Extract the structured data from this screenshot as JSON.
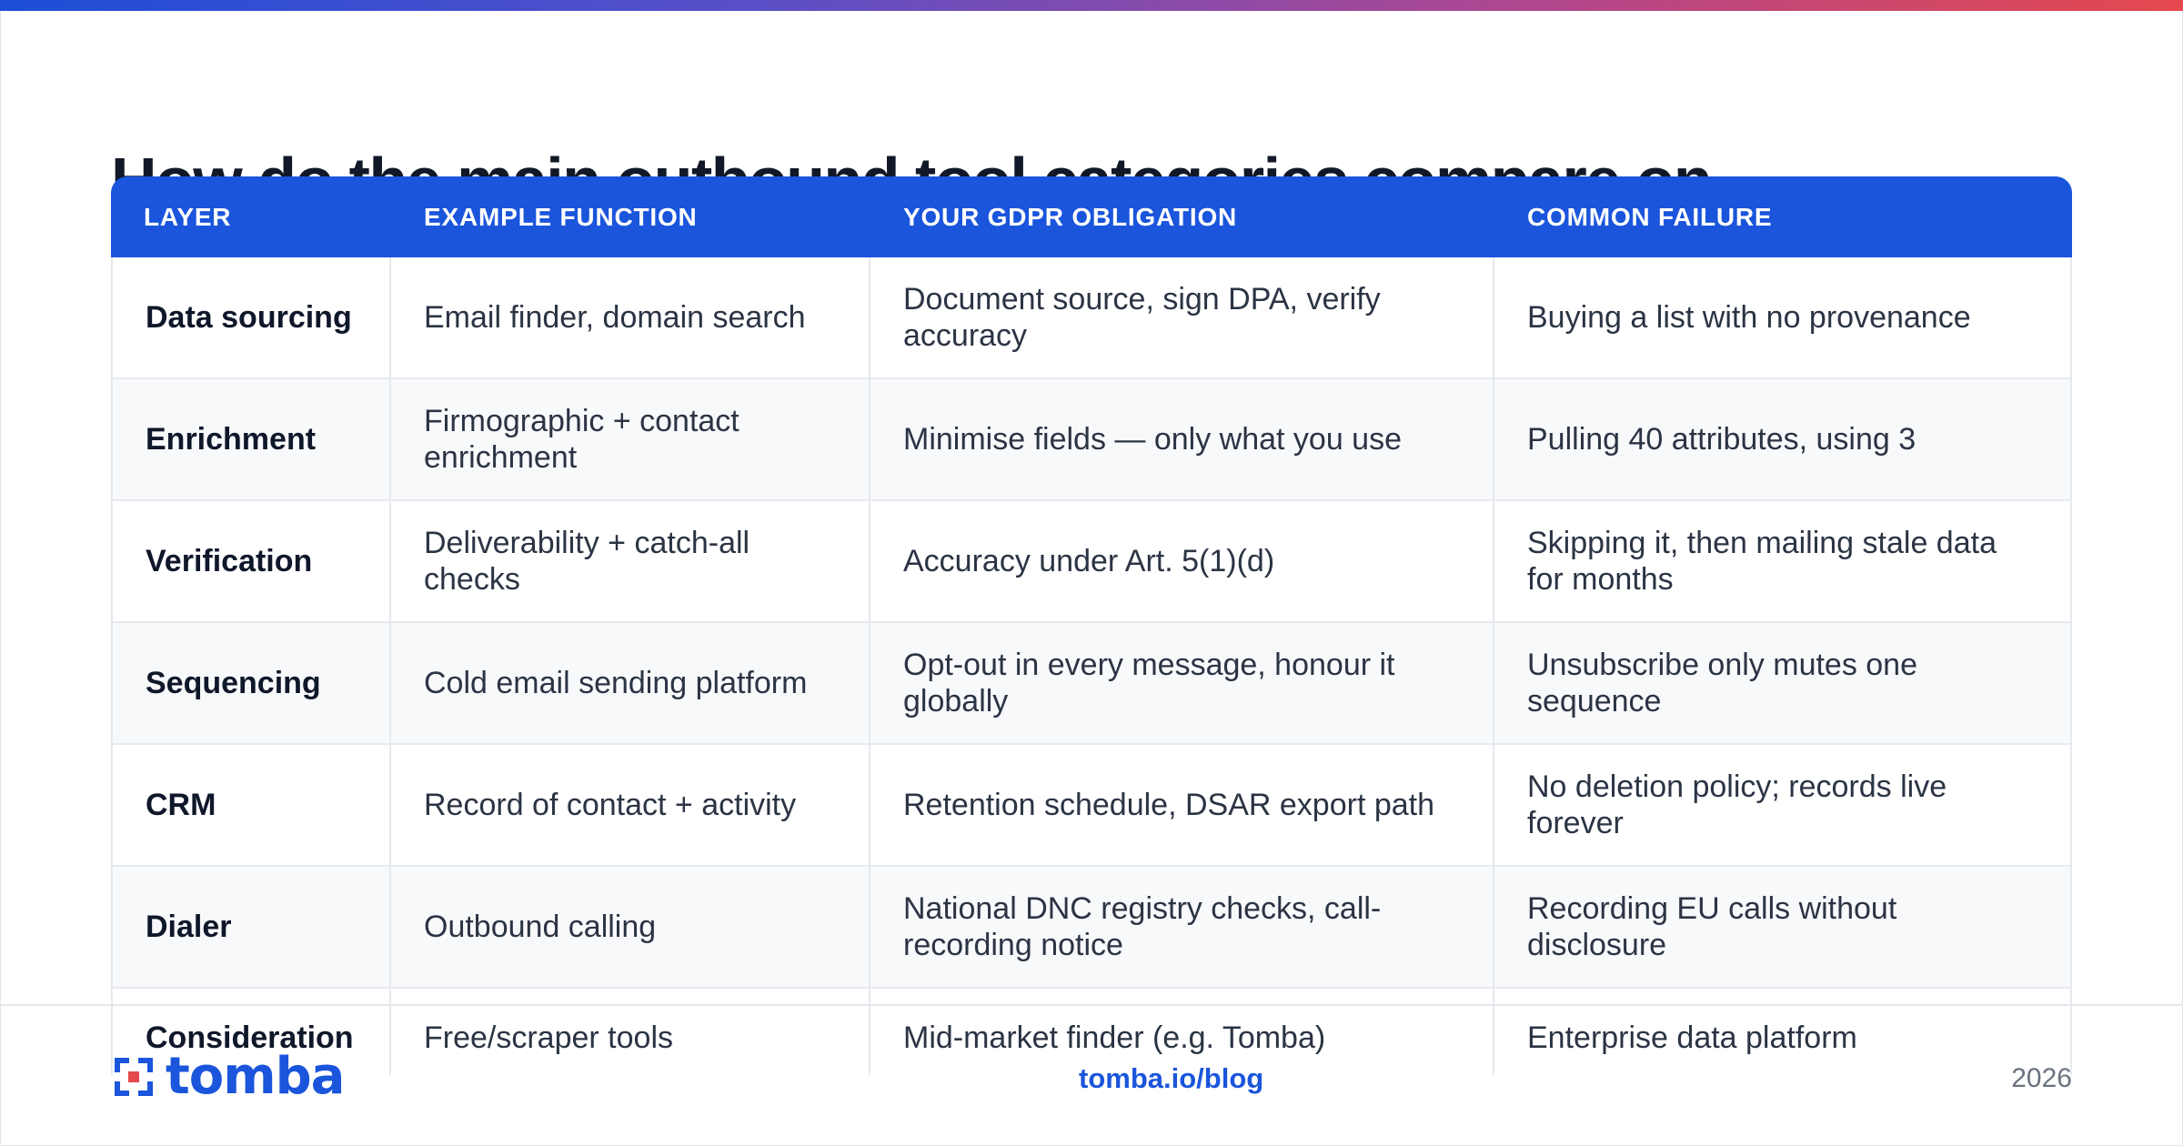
{
  "title": "How do the main outbound tool categories compare on",
  "table": {
    "headers": [
      "LAYER",
      "EXAMPLE FUNCTION",
      "YOUR GDPR OBLIGATION",
      "COMMON FAILURE"
    ],
    "rows": [
      [
        "Data sourcing",
        "Email finder, domain search",
        "Document source, sign DPA, verify accuracy",
        "Buying a list with no provenance"
      ],
      [
        "Enrichment",
        "Firmographic + contact enrichment",
        "Minimise fields — only what you use",
        "Pulling 40 attributes, using 3"
      ],
      [
        "Verification",
        "Deliverability + catch-all checks",
        "Accuracy under Art. 5(1)(d)",
        "Skipping it, then mailing stale data for months"
      ],
      [
        "Sequencing",
        "Cold email sending platform",
        "Opt-out in every message, honour it globally",
        "Unsubscribe only mutes one sequence"
      ],
      [
        "CRM",
        "Record of contact + activity",
        "Retention schedule, DSAR export path",
        "No deletion policy; records live forever"
      ],
      [
        "Dialer",
        "Outbound calling",
        "National DNC registry checks, call-recording notice",
        "Recording EU calls without disclosure"
      ],
      [
        "Consideration",
        "Free/scraper tools",
        "Mid-market finder (e.g. Tomba)",
        "Enterprise data platform"
      ]
    ]
  },
  "footer": {
    "logo_text": "tomba",
    "link": "tomba.io/blog",
    "year": "2026"
  },
  "colors": {
    "accent": "#1a55dc",
    "header_bg": "#1a55dc",
    "stripe": "#f8f9fb",
    "border": "#e6e9ef"
  }
}
